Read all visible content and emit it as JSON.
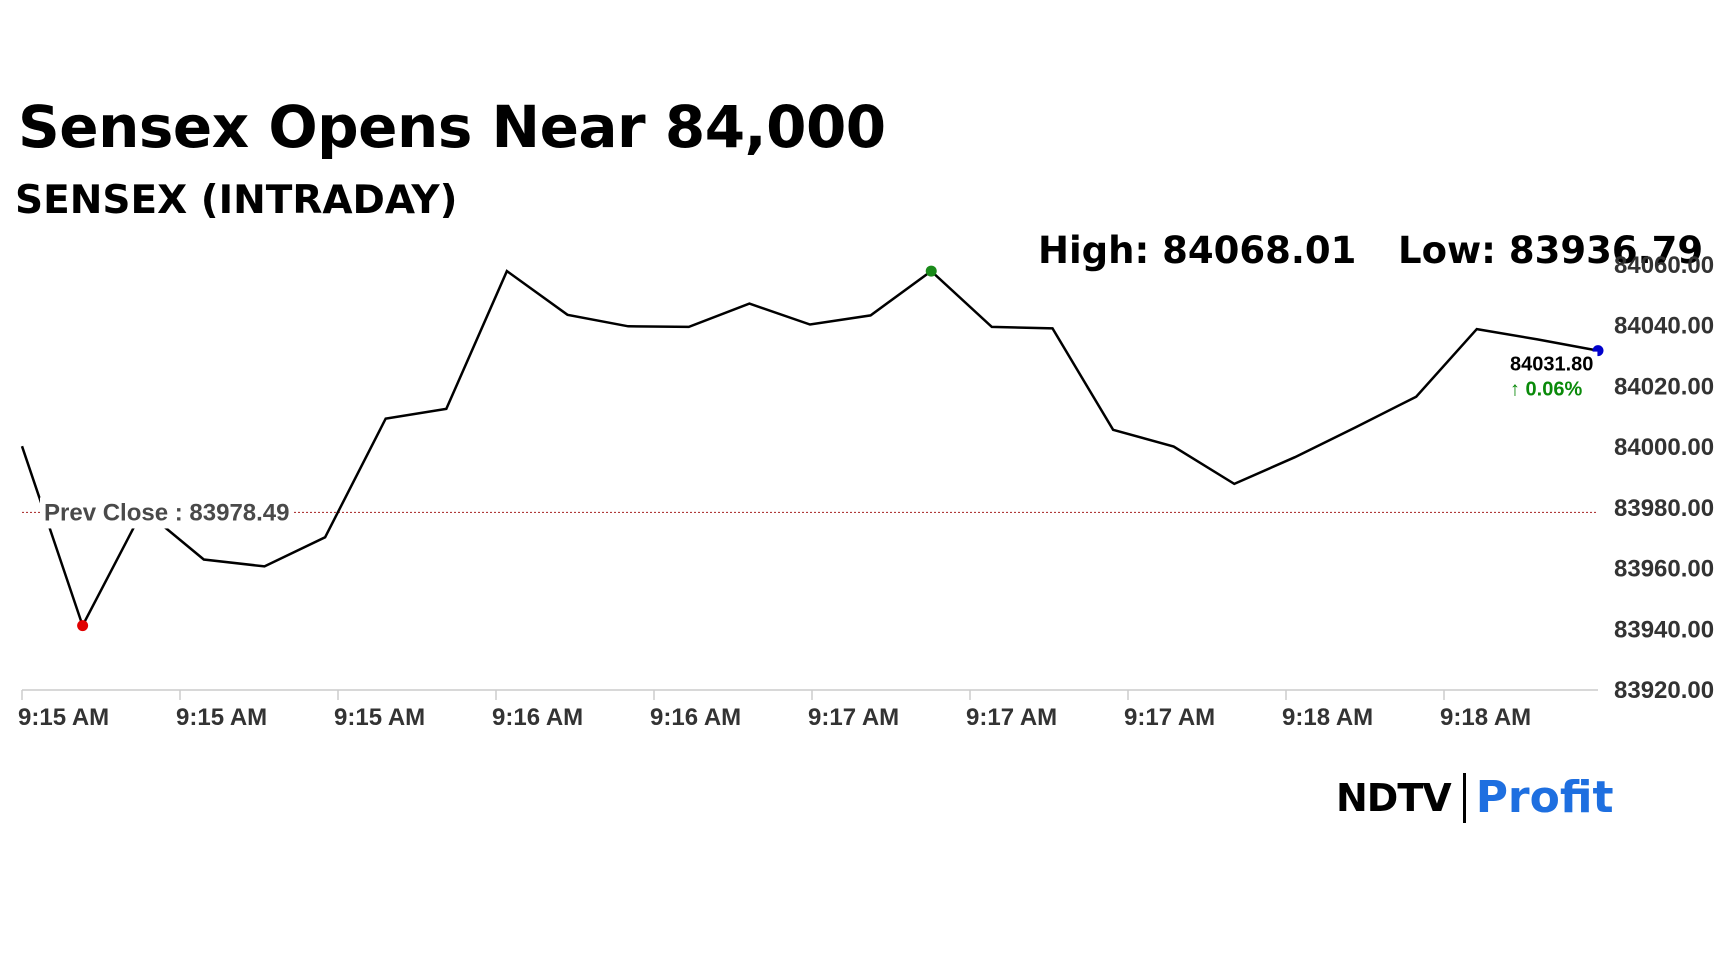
{
  "header": {
    "headline": "Sensex Opens Near 84,000",
    "subhead": "SENSEX (INTRADAY)"
  },
  "stats": {
    "high": "High: 84068.01",
    "low": "Low: 83936.79"
  },
  "chart_data": {
    "type": "line",
    "ylim": [
      83920,
      84060
    ],
    "yticks": [
      83920,
      83940,
      83960,
      83980,
      84000,
      84020,
      84040,
      84060
    ],
    "ytick_labels": [
      "83920.00",
      "83940.00",
      "83960.00",
      "83980.00",
      "84000.00",
      "84020.00",
      "84040.00",
      "84060.00"
    ],
    "xtick_labels": [
      "9:15 AM",
      "9:15 AM",
      "9:15 AM",
      "9:16 AM",
      "9:16 AM",
      "9:17 AM",
      "9:17 AM",
      "9:17 AM",
      "9:18 AM",
      "9:18 AM"
    ],
    "values": [
      84000.3,
      83941.2,
      83979.5,
      83963.0,
      83960.7,
      83970.3,
      84009.4,
      84012.6,
      84058.0,
      84043.6,
      84039.8,
      84039.6,
      84047.3,
      84040.4,
      84043.4,
      84058.0,
      84039.6,
      84039.1,
      84005.7,
      84000.2,
      83987.9,
      83996.7,
      84006.5,
      84016.6,
      84038.9,
      84035.5,
      84031.8
    ],
    "prev_close": 83978.49,
    "prev_close_label": "Prev Close : 83978.49",
    "low_index": 1,
    "high_index": 15,
    "last_value_label": "84031.80",
    "last_change_label": "↑ 0.06%",
    "colors": {
      "line": "#000000",
      "prev_close": "#b03a3a",
      "low_marker": "#e00000",
      "high_marker": "#1a8a1a",
      "last_marker": "#0000cc",
      "axis": "#cccccc"
    }
  },
  "logo": {
    "ndtv": "NDTV",
    "profit": "Profit"
  }
}
